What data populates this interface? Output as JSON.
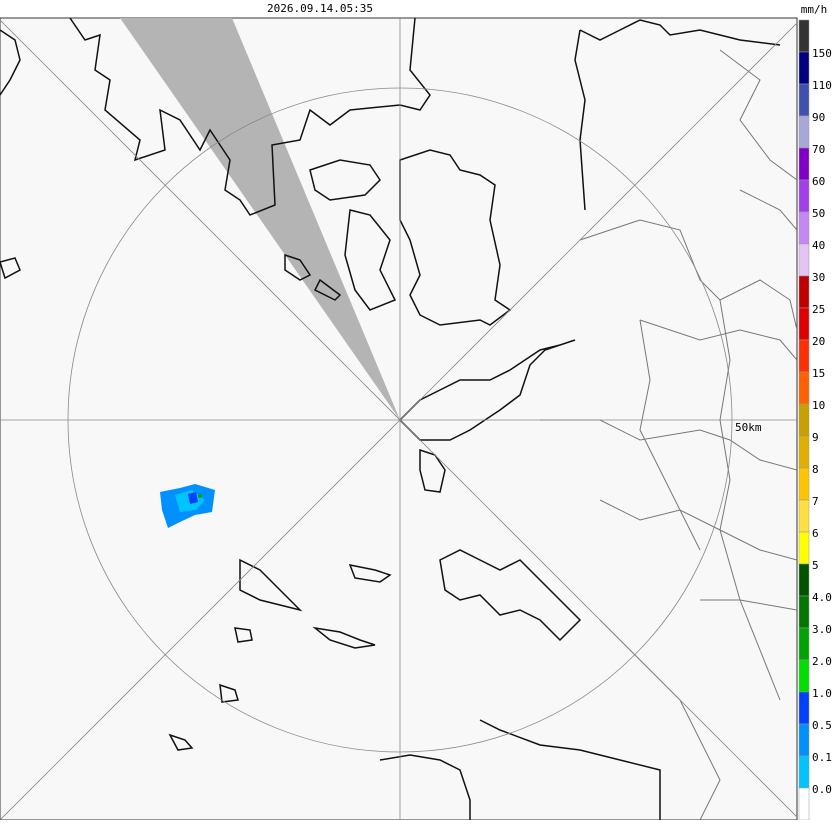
{
  "header": {
    "timestamp": "2026.09.14.05:35",
    "unit": "mm/h"
  },
  "map": {
    "range_label": "50km"
  },
  "legend": {
    "colors": [
      "#333333",
      "#000080",
      "#4050b0",
      "#a8a8d8",
      "#8000c8",
      "#a040e8",
      "#c488f4",
      "#e4c4f4",
      "#c00000",
      "#e00000",
      "#ff3000",
      "#ff6000",
      "#c8a000",
      "#e0b000",
      "#ffc400",
      "#ffe040",
      "#ffff00",
      "#005400",
      "#007800",
      "#00a400",
      "#00e000",
      "#0040ff",
      "#0090ff",
      "#00c4ff",
      "#ffffff"
    ],
    "labels": [
      "150",
      "110",
      "90",
      "70",
      "60",
      "50",
      "40",
      "30",
      "25",
      "20",
      "15",
      "10",
      "9",
      "8",
      "7",
      "6",
      "5",
      "4.0",
      "3.0",
      "2.0",
      "1.0",
      "0.5",
      "0.1",
      "0.0"
    ]
  }
}
